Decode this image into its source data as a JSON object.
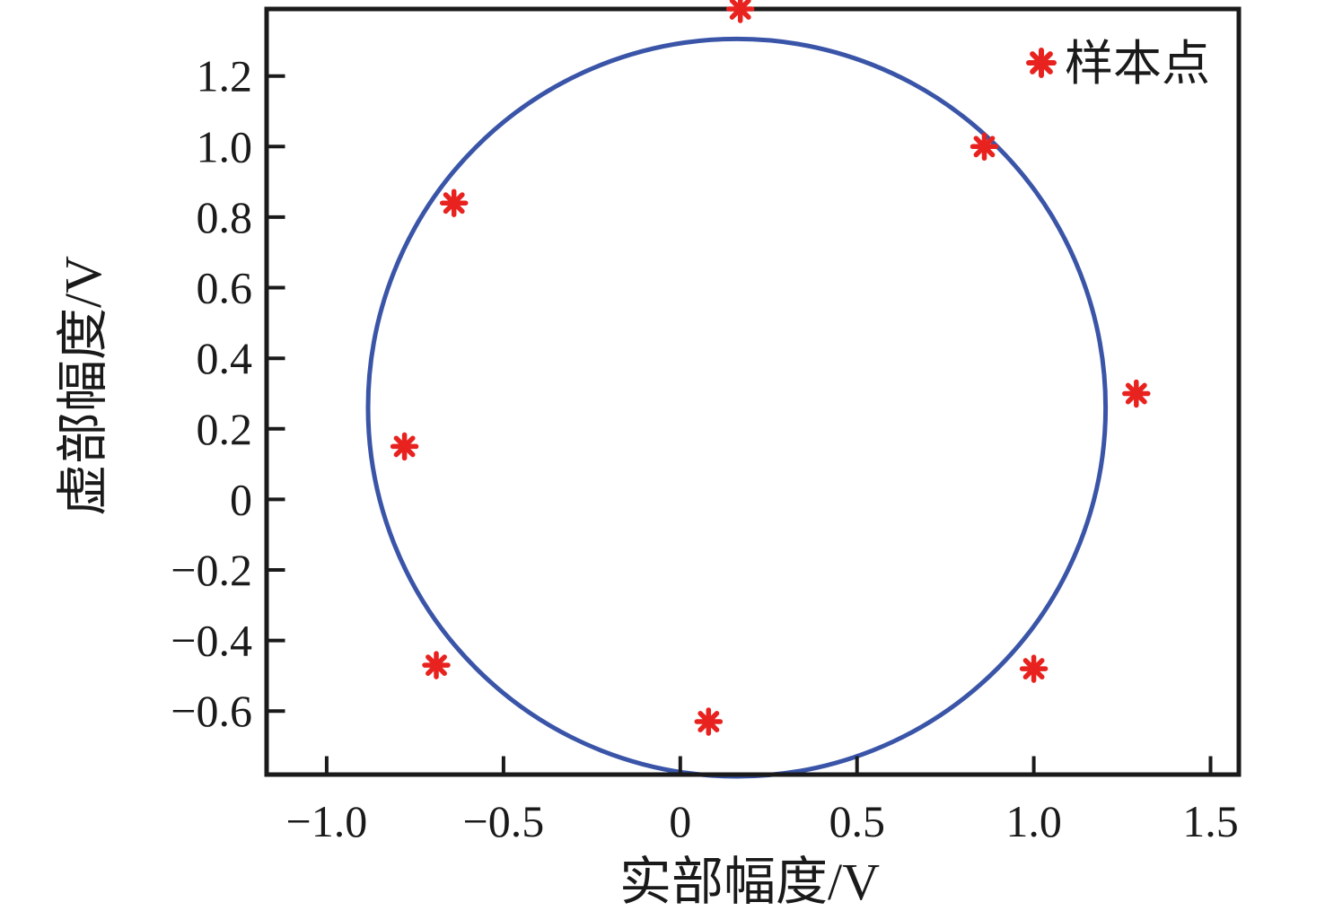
{
  "chart_data": {
    "type": "scatter",
    "title": "",
    "xlabel": "实部幅度/V",
    "ylabel": "虚部幅度/V",
    "xlim": [
      -1.17,
      1.58
    ],
    "ylim": [
      -0.78,
      1.39
    ],
    "grid": false,
    "x_ticks": [
      -1.0,
      -0.5,
      0,
      0.5,
      1.0,
      1.5
    ],
    "x_tick_labels": [
      "−1.0",
      "−0.5",
      "0",
      "0.5",
      "1.0",
      "1.5"
    ],
    "y_ticks": [
      1.2,
      1.0,
      0.8,
      0.6,
      0.4,
      0.2,
      0,
      -0.2,
      -0.4,
      -0.6
    ],
    "y_tick_labels": [
      "1.2",
      "1.0",
      "0.8",
      "0.6",
      "0.4",
      "0.2",
      "0",
      "−0.2",
      "−0.4",
      "−0.6"
    ],
    "legend": {
      "label": "样本点",
      "marker": "asterisk",
      "position": "top-right"
    },
    "series": [
      {
        "name": "样本点",
        "type": "scatter",
        "marker": "asterisk",
        "color": "#e8231f",
        "points": [
          {
            "x": 0.17,
            "y": 1.39
          },
          {
            "x": 0.86,
            "y": 1.0
          },
          {
            "x": -0.64,
            "y": 0.84
          },
          {
            "x": 1.29,
            "y": 0.3
          },
          {
            "x": -0.78,
            "y": 0.15
          },
          {
            "x": -0.69,
            "y": -0.47
          },
          {
            "x": 0.08,
            "y": -0.63
          },
          {
            "x": 1.0,
            "y": -0.48
          }
        ]
      },
      {
        "name": "fitted-circle",
        "type": "circle",
        "color": "#3a55a8",
        "center": {
          "x": 0.16,
          "y": 0.26
        },
        "radius": 1.045
      }
    ],
    "colors": {
      "samples": "#e8231f",
      "circle": "#3a55a8",
      "axis": "#1a1a1a",
      "background": "#ffffff"
    }
  }
}
